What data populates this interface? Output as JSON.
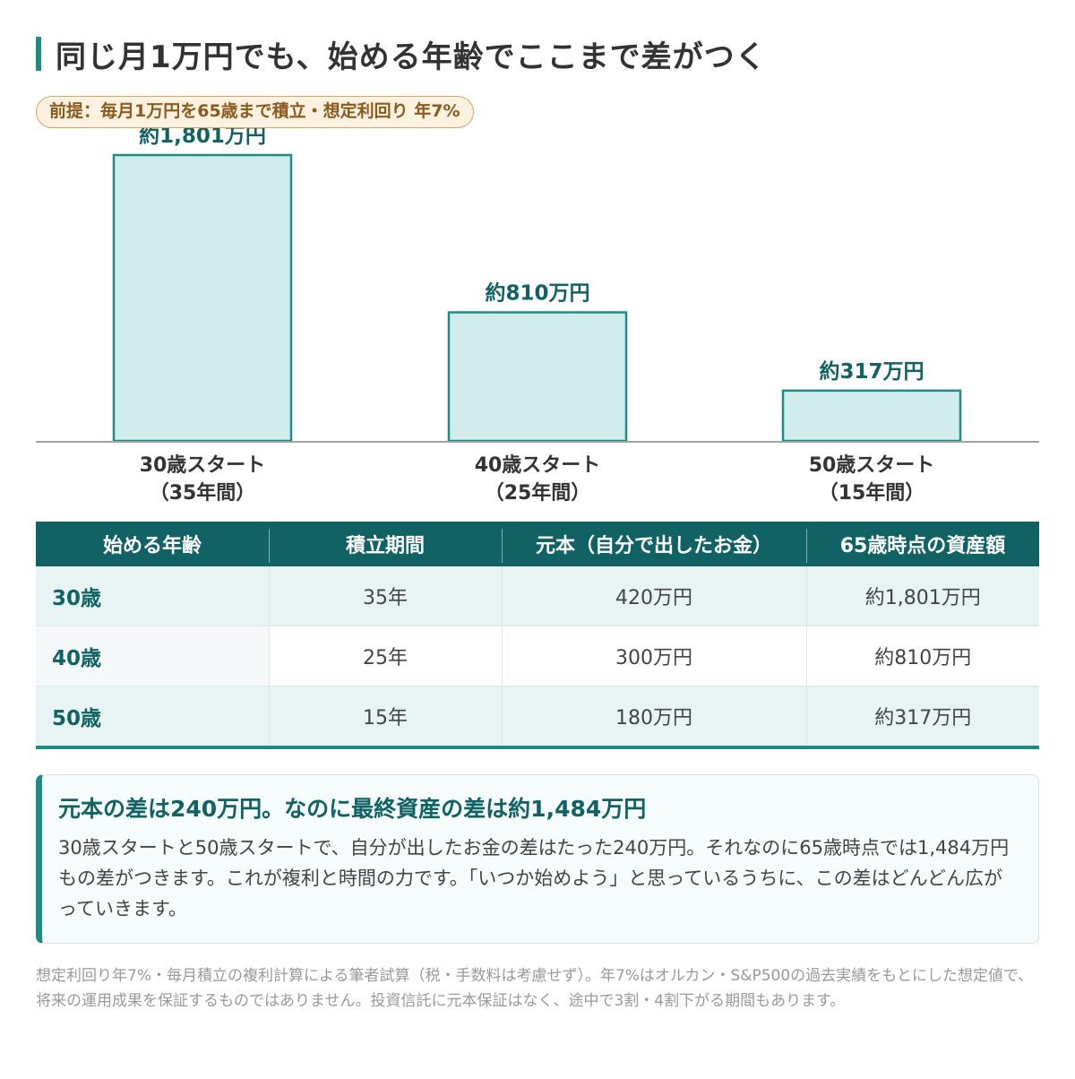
{
  "title": "同じ月1万円でも、始める年齢でここまで差がつく",
  "premise": "前提：毎月1万円を65歳まで積立・想定利回り 年7%",
  "chart_data": {
    "type": "bar",
    "categories": [
      "30歳スタート",
      "40歳スタート",
      "50歳スタート"
    ],
    "category_sublabels": [
      "（35年間）",
      "（25年間）",
      "（15年間）"
    ],
    "values": [
      1801,
      810,
      317
    ],
    "value_labels": [
      "約1,801万円",
      "約810万円",
      "約317万円"
    ],
    "unit": "万円",
    "ylim": [
      0,
      1801
    ],
    "grid": false,
    "legend": "none"
  },
  "colors": {
    "accent": "#1e8c84",
    "dark_teal": "#106264",
    "bar_fill": "#d0ecec",
    "premise_fill": "#fdf1df",
    "premise_text": "#8a5a1e"
  },
  "table": {
    "headers": [
      "始める年齢",
      "積立期間",
      "元本（自分で出したお金）",
      "65歳時点の資産額"
    ],
    "rows": [
      [
        "30歳",
        "35年",
        "420万円",
        "約1,801万円"
      ],
      [
        "40歳",
        "25年",
        "300万円",
        "約810万円"
      ],
      [
        "50歳",
        "15年",
        "180万円",
        "約317万円"
      ]
    ]
  },
  "callout": {
    "title": "元本の差は240万円。なのに最終資産の差は約1,484万円",
    "body": "30歳スタートと50歳スタートで、自分が出したお金の差はたった240万円。それなのに65歳時点では1,484万円もの差がつきます。これが複利と時間の力です。「いつか始めよう」と思っているうちに、この差はどんどん広がっていきます。"
  },
  "footnote": "想定利回り年7%・毎月積立の複利計算による筆者試算（税・手数料は考慮せず）。年7%はオルカン・S&P500の過去実績をもとにした想定値で、将来の運用成果を保証するものではありません。投資信託に元本保証はなく、途中で3割・4割下がる期間もあります。"
}
